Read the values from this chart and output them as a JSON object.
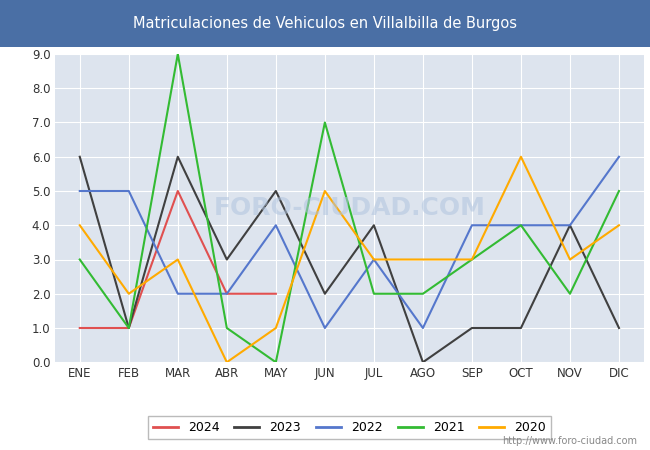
{
  "title": "Matriculaciones de Vehiculos en Villalbilla de Burgos",
  "title_bg_color": "#4a6fa5",
  "title_text_color": "#ffffff",
  "months": [
    "ENE",
    "FEB",
    "MAR",
    "ABR",
    "MAY",
    "JUN",
    "JUL",
    "AGO",
    "SEP",
    "OCT",
    "NOV",
    "DIC"
  ],
  "series": {
    "2024": {
      "color": "#e05050",
      "data": [
        1,
        1,
        5,
        2,
        2,
        null,
        null,
        null,
        null,
        null,
        null,
        null
      ]
    },
    "2023": {
      "color": "#404040",
      "data": [
        6,
        1,
        6,
        3,
        5,
        2,
        4,
        0,
        1,
        1,
        4,
        1
      ]
    },
    "2022": {
      "color": "#5577cc",
      "data": [
        5,
        5,
        2,
        2,
        4,
        1,
        3,
        1,
        4,
        4,
        4,
        6
      ]
    },
    "2021": {
      "color": "#33bb33",
      "data": [
        3,
        1,
        9,
        1,
        0,
        7,
        2,
        2,
        3,
        4,
        2,
        5
      ]
    },
    "2020": {
      "color": "#ffaa00",
      "data": [
        4,
        2,
        3,
        0,
        1,
        5,
        3,
        3,
        3,
        6,
        3,
        4
      ]
    }
  },
  "ylim": [
    0,
    9.0
  ],
  "yticks": [
    0.0,
    1.0,
    2.0,
    3.0,
    4.0,
    5.0,
    6.0,
    7.0,
    8.0,
    9.0
  ],
  "grid_color": "#ffffff",
  "plot_bg_color": "#dde4ee",
  "fig_bg_color": "#ffffff",
  "watermark": "FORO-CIUDAD.COM",
  "url_text": "http://www.foro-ciudad.com",
  "legend_order": [
    "2024",
    "2023",
    "2022",
    "2021",
    "2020"
  ]
}
